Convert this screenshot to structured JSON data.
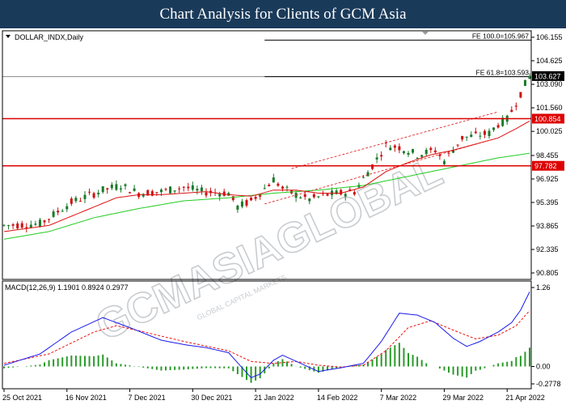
{
  "banner_title": "Chart Analysis for Clients of GCM Asia",
  "watermark": {
    "big": "GCMASIAGLOBAL",
    "small": "GLOBAL CAPITAL MARKETS"
  },
  "colors": {
    "banner": "#1a3a5a",
    "up_candle": "#1a7a2a",
    "down_candle": "#cc1111",
    "ma_fast": "#dd1111",
    "ma_slow": "#22cc22",
    "sr_line": "#dd0000",
    "fe_line": "#000000",
    "macd_line": "#1a1aee",
    "signal_line": "#ee1111",
    "histogram": "#2a9a2a"
  },
  "chart_data": [
    {
      "type": "candlestick",
      "title": "DOLLAR_INDX,Daily",
      "ylim": [
        90.805,
        106.155
      ],
      "y_ticks": [
        106.155,
        104.625,
        103.09,
        101.56,
        100.025,
        98.455,
        96.925,
        95.395,
        93.865,
        92.335,
        90.805
      ],
      "x_tick_labels": [
        "25 Oct 2021",
        "16 Nov 2021",
        "7 Dec 2021",
        "30 Dec 2021",
        "21 Jan 2022",
        "14 Feb 2022",
        "7 Mar 2022",
        "29 Mar 2022",
        "21 Apr 2022"
      ],
      "levels": [
        {
          "name": "support",
          "value": 97.782,
          "label": "97.782"
        },
        {
          "name": "resistance",
          "value": 100.854,
          "label": "100.854"
        }
      ],
      "fe_levels": [
        {
          "label": "FE 100.0=105.967",
          "value": 105.967
        },
        {
          "label": "FE 61.8=103.593",
          "value": 103.593
        }
      ],
      "current_price": {
        "value": 103.627,
        "label": "103.627"
      },
      "price_path": [
        [
          0,
          93.9
        ],
        [
          8,
          94.0
        ],
        [
          15,
          95.4
        ],
        [
          22,
          96.2
        ],
        [
          26,
          96.5
        ],
        [
          30,
          96.0
        ],
        [
          35,
          96.1
        ],
        [
          40,
          96.4
        ],
        [
          44,
          96.1
        ],
        [
          50,
          96.0
        ],
        [
          52,
          95.1
        ],
        [
          55,
          95.5
        ],
        [
          58,
          96.3
        ],
        [
          60,
          96.9
        ],
        [
          62,
          96.3
        ],
        [
          65,
          95.9
        ],
        [
          68,
          95.6
        ],
        [
          72,
          95.9
        ],
        [
          78,
          96.1
        ],
        [
          82,
          97.8
        ],
        [
          85,
          99.1
        ],
        [
          88,
          99.0
        ],
        [
          92,
          98.5
        ],
        [
          96,
          98.8
        ],
        [
          98,
          98.1
        ],
        [
          102,
          99.6
        ],
        [
          106,
          99.8
        ],
        [
          108,
          99.9
        ],
        [
          110,
          100.5
        ],
        [
          112,
          100.8
        ],
        [
          114,
          101.9
        ],
        [
          116,
          103.1
        ],
        [
          117,
          103.6
        ]
      ],
      "ma_fast_path": [
        [
          0,
          93.5
        ],
        [
          10,
          93.9
        ],
        [
          20,
          95.1
        ],
        [
          25,
          95.7
        ],
        [
          30,
          95.9
        ],
        [
          35,
          95.9
        ],
        [
          40,
          96.0
        ],
        [
          45,
          96.1
        ],
        [
          50,
          95.9
        ],
        [
          55,
          95.8
        ],
        [
          60,
          96.2
        ],
        [
          65,
          96.2
        ],
        [
          70,
          96.0
        ],
        [
          75,
          96.0
        ],
        [
          80,
          96.4
        ],
        [
          85,
          97.4
        ],
        [
          90,
          98.0
        ],
        [
          95,
          98.5
        ],
        [
          100,
          98.8
        ],
        [
          105,
          99.2
        ],
        [
          110,
          99.6
        ],
        [
          114,
          100.2
        ],
        [
          117,
          100.7
        ]
      ],
      "ma_slow_path": [
        [
          0,
          93.0
        ],
        [
          10,
          93.5
        ],
        [
          20,
          94.4
        ],
        [
          30,
          95.0
        ],
        [
          40,
          95.5
        ],
        [
          50,
          95.7
        ],
        [
          60,
          96.0
        ],
        [
          70,
          96.2
        ],
        [
          80,
          96.5
        ],
        [
          90,
          97.1
        ],
        [
          100,
          97.7
        ],
        [
          110,
          98.3
        ],
        [
          117,
          98.6
        ]
      ]
    },
    {
      "type": "macd",
      "title": "MACD(12,26,9) 1.1901 0.8924 0.2977",
      "params": [
        12,
        26,
        9
      ],
      "values": {
        "macd": 1.1901,
        "signal": 0.8924,
        "histogram": 0.2977
      },
      "ylim": [
        -0.2778,
        1.26
      ],
      "y_ticks": [
        1.26,
        0.0,
        -0.2778
      ],
      "y_tick_labels": [
        "1.26",
        "0.00",
        "-0.2778"
      ],
      "macd_path": [
        [
          0,
          0.02
        ],
        [
          8,
          0.2
        ],
        [
          15,
          0.55
        ],
        [
          22,
          0.78
        ],
        [
          28,
          0.62
        ],
        [
          35,
          0.42
        ],
        [
          40,
          0.35
        ],
        [
          45,
          0.3
        ],
        [
          50,
          0.22
        ],
        [
          53,
          -0.02
        ],
        [
          55,
          -0.18
        ],
        [
          57,
          -0.12
        ],
        [
          60,
          0.1
        ],
        [
          62,
          0.18
        ],
        [
          66,
          0.05
        ],
        [
          70,
          -0.08
        ],
        [
          75,
          -0.02
        ],
        [
          80,
          0.05
        ],
        [
          84,
          0.4
        ],
        [
          88,
          0.85
        ],
        [
          92,
          0.82
        ],
        [
          96,
          0.7
        ],
        [
          100,
          0.45
        ],
        [
          103,
          0.32
        ],
        [
          106,
          0.4
        ],
        [
          110,
          0.55
        ],
        [
          113,
          0.7
        ],
        [
          115,
          0.9
        ],
        [
          117,
          1.19
        ]
      ],
      "signal_path": [
        [
          0,
          0.05
        ],
        [
          10,
          0.2
        ],
        [
          20,
          0.55
        ],
        [
          25,
          0.65
        ],
        [
          30,
          0.57
        ],
        [
          40,
          0.4
        ],
        [
          50,
          0.25
        ],
        [
          55,
          0.08
        ],
        [
          60,
          0.05
        ],
        [
          65,
          0.08
        ],
        [
          70,
          0.02
        ],
        [
          75,
          -0.01
        ],
        [
          80,
          0.02
        ],
        [
          85,
          0.25
        ],
        [
          90,
          0.62
        ],
        [
          95,
          0.73
        ],
        [
          100,
          0.58
        ],
        [
          105,
          0.44
        ],
        [
          110,
          0.5
        ],
        [
          114,
          0.65
        ],
        [
          117,
          0.89
        ]
      ]
    }
  ]
}
